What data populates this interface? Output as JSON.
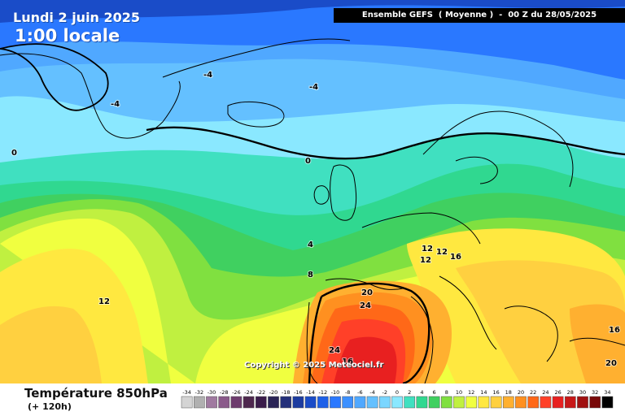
{
  "header": {
    "date": "Lundi 2 juin 2025",
    "time": "1:00 locale",
    "model_run": "Ensemble GEFS  ( Moyenne )  -  00 Z du 28/05/2025"
  },
  "map": {
    "copyright": "Copyright © 2025 Meteociel.fr",
    "contour_labels": [
      "-4",
      "-4",
      "-4",
      "0",
      "0",
      "4",
      "8",
      "12",
      "12",
      "12",
      "12",
      "16",
      "20",
      "24",
      "24",
      "16",
      "16",
      "20"
    ]
  },
  "footer": {
    "variable": "Température 850hPa",
    "lead_time": "(+ 120h)"
  },
  "legend": {
    "unit_values": [
      "-34",
      "-32",
      "-30",
      "-28",
      "-26",
      "-24",
      "-22",
      "-20",
      "-18",
      "-16",
      "-14",
      "-12",
      "-10",
      "-8",
      "-6",
      "-4",
      "-2",
      "0",
      "2",
      "4",
      "6",
      "8",
      "10",
      "12",
      "14",
      "16",
      "18",
      "20",
      "22",
      "24",
      "26",
      "28",
      "30",
      "32",
      "34"
    ],
    "colors": [
      "#d4d4d4",
      "#b0b0b0",
      "#a07aa0",
      "#8a5a8a",
      "#6e3c6e",
      "#4e284e",
      "#3a1c4a",
      "#2a2456",
      "#24307a",
      "#1c3ca0",
      "#1a4cc8",
      "#1e60e8",
      "#2a78ff",
      "#3c90ff",
      "#50a8ff",
      "#64c0ff",
      "#7ad6ff",
      "#8ae8ff",
      "#40e0c0",
      "#30d890",
      "#40d060",
      "#80e040",
      "#c0f040",
      "#f0ff40",
      "#ffe840",
      "#ffd040",
      "#ffb030",
      "#ff9020",
      "#ff6818",
      "#ff4028",
      "#e82020",
      "#c81818",
      "#a01010",
      "#780808",
      "#000000"
    ]
  }
}
